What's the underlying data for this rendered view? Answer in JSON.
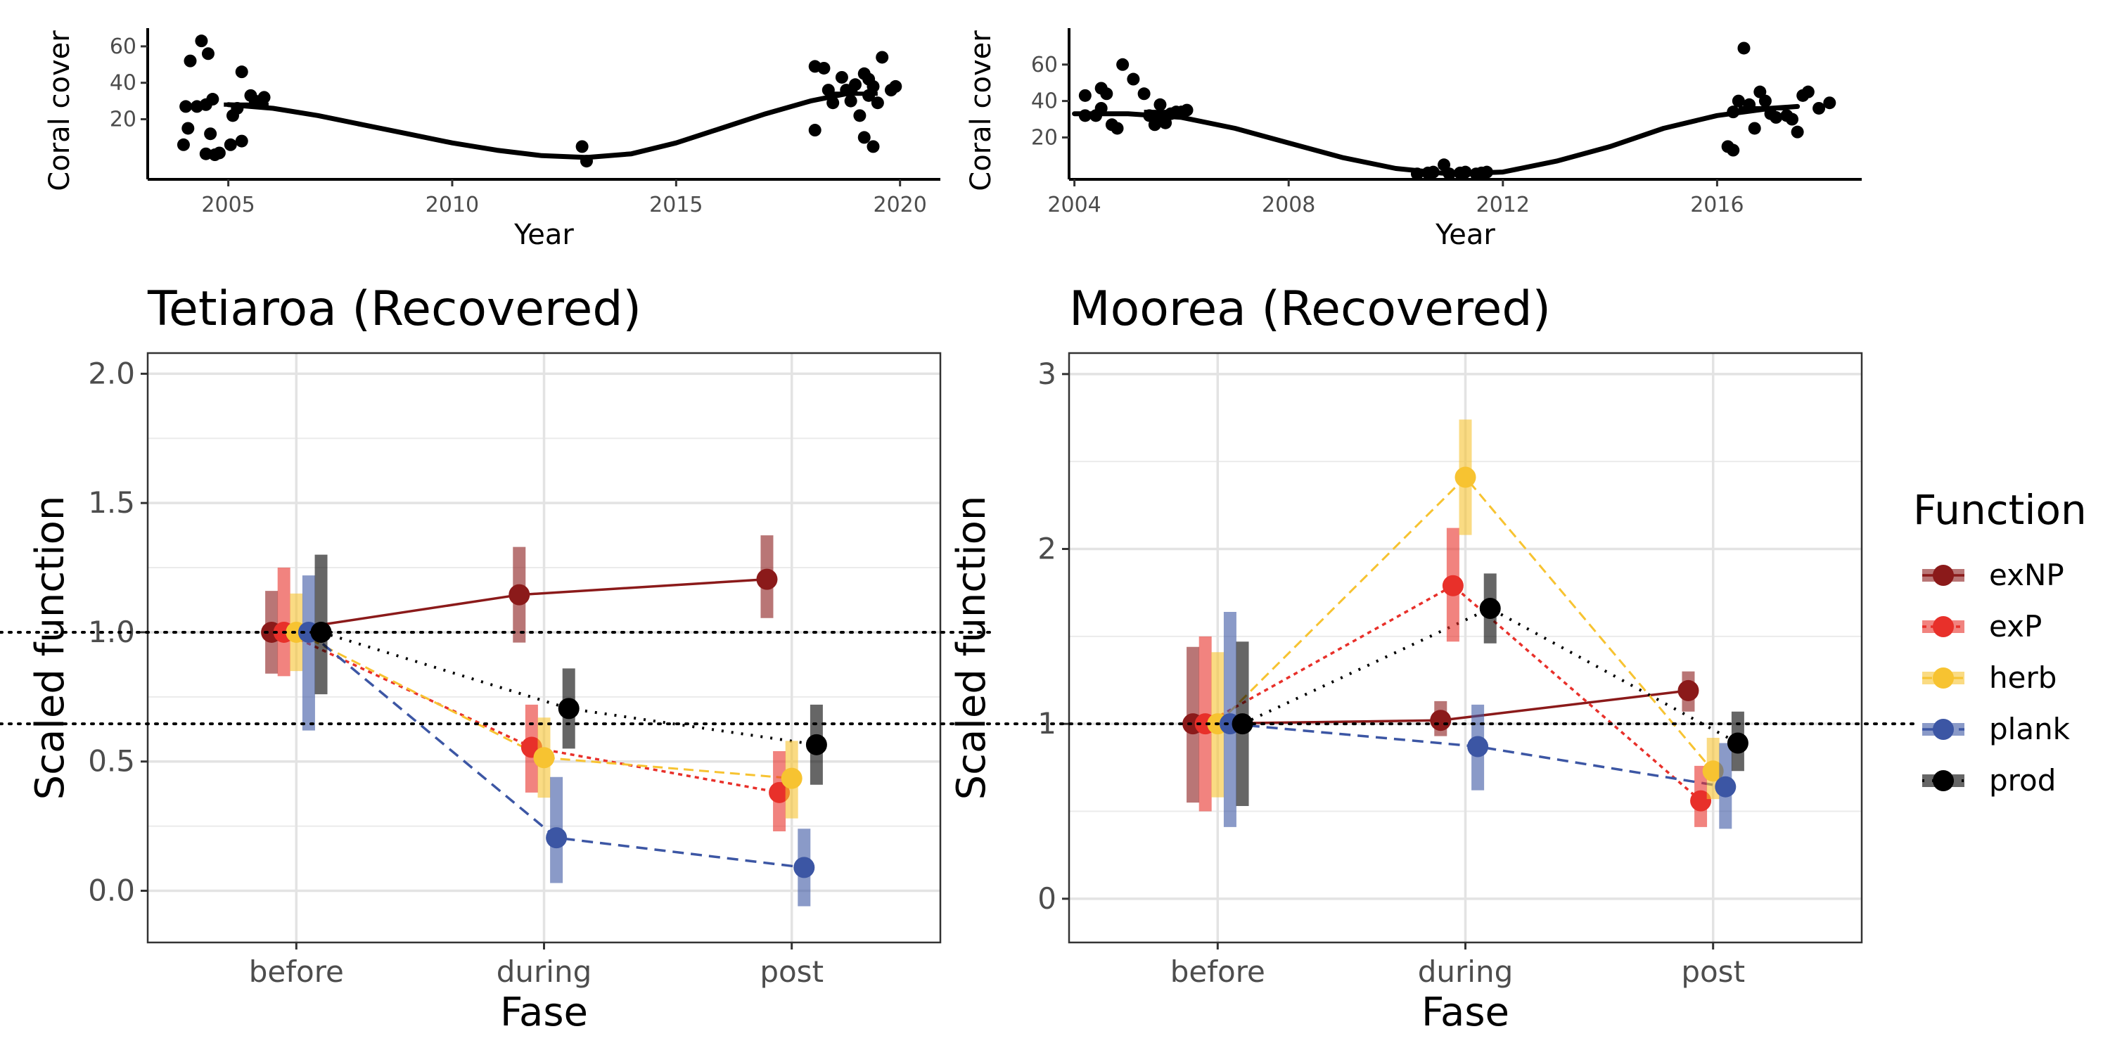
{
  "colors": {
    "exNP": "#8B1A1A",
    "exP": "#E8302A",
    "herb": "#F7C331",
    "plank": "#3C56A4",
    "prod": "#000000"
  },
  "legend": {
    "title": "Function",
    "position": "right",
    "items": [
      {
        "key": "exNP",
        "label": "exNP"
      },
      {
        "key": "exP",
        "label": "exP"
      },
      {
        "key": "herb",
        "label": "herb"
      },
      {
        "key": "plank",
        "label": "plank"
      },
      {
        "key": "prod",
        "label": "prod"
      }
    ]
  },
  "chart_data": [
    {
      "id": "tetiaroa-cover",
      "type": "scatter",
      "title": "",
      "xlabel": "Year",
      "ylabel": "Coral cover",
      "xlim": [
        2003.2,
        2020.9
      ],
      "ylim": [
        -13,
        70
      ],
      "xticks": [
        2005,
        2010,
        2015,
        2020
      ],
      "yticks": [
        20,
        40,
        60
      ],
      "grid": false,
      "points": [
        [
          2004.0,
          6
        ],
        [
          2004.05,
          27
        ],
        [
          2004.1,
          15
        ],
        [
          2004.15,
          52
        ],
        [
          2004.3,
          27
        ],
        [
          2004.4,
          63
        ],
        [
          2004.5,
          28
        ],
        [
          2004.5,
          1
        ],
        [
          2004.55,
          56
        ],
        [
          2004.6,
          12
        ],
        [
          2004.65,
          31
        ],
        [
          2004.7,
          0.5
        ],
        [
          2004.8,
          1.5
        ],
        [
          2005.05,
          6
        ],
        [
          2005.1,
          22
        ],
        [
          2005.2,
          26
        ],
        [
          2005.3,
          8
        ],
        [
          2005.3,
          46
        ],
        [
          2005.5,
          33
        ],
        [
          2005.6,
          30
        ],
        [
          2005.8,
          32
        ],
        [
          2012.9,
          5
        ],
        [
          2013.0,
          -3
        ],
        [
          2018.1,
          14
        ],
        [
          2018.1,
          49
        ],
        [
          2018.3,
          48
        ],
        [
          2018.4,
          36
        ],
        [
          2018.5,
          29
        ],
        [
          2018.7,
          43
        ],
        [
          2018.8,
          36
        ],
        [
          2018.9,
          30
        ],
        [
          2019.0,
          39
        ],
        [
          2019.1,
          22
        ],
        [
          2019.2,
          45
        ],
        [
          2019.2,
          10
        ],
        [
          2019.3,
          33
        ],
        [
          2019.3,
          42
        ],
        [
          2019.4,
          38
        ],
        [
          2019.4,
          5
        ],
        [
          2019.5,
          29
        ],
        [
          2019.6,
          54
        ],
        [
          2019.8,
          36
        ],
        [
          2019.9,
          38
        ]
      ],
      "curve": [
        [
          2005.0,
          28
        ],
        [
          2006.0,
          26
        ],
        [
          2007.0,
          22
        ],
        [
          2008.0,
          17
        ],
        [
          2009.0,
          12
        ],
        [
          2010.0,
          7
        ],
        [
          2011.0,
          3
        ],
        [
          2012.0,
          0
        ],
        [
          2013.0,
          -1
        ],
        [
          2014.0,
          1
        ],
        [
          2015.0,
          7
        ],
        [
          2016.0,
          15
        ],
        [
          2017.0,
          23
        ],
        [
          2018.0,
          30
        ],
        [
          2019.0,
          35
        ]
      ],
      "segments": [
        {
          "x": [
            2004.9,
            2005.9
          ],
          "y": 28
        },
        {
          "x": [
            2018.5,
            2019.5
          ],
          "y": 34
        }
      ]
    },
    {
      "id": "moorea-cover",
      "type": "scatter",
      "title": "",
      "xlabel": "Year",
      "ylabel": "Coral cover",
      "xlim": [
        2003.9,
        2018.7
      ],
      "ylim": [
        -3,
        80
      ],
      "xticks": [
        2004,
        2008,
        2012,
        2016
      ],
      "xtick_labels": [
        "2004",
        "2008",
        "2012",
        "2016"
      ],
      "yticks": [
        20,
        40,
        60
      ],
      "grid": false,
      "points": [
        [
          2004.2,
          43
        ],
        [
          2004.2,
          32
        ],
        [
          2004.4,
          32
        ],
        [
          2004.5,
          36
        ],
        [
          2004.5,
          47
        ],
        [
          2004.6,
          44
        ],
        [
          2004.7,
          27
        ],
        [
          2004.8,
          25
        ],
        [
          2004.9,
          60
        ],
        [
          2005.1,
          52
        ],
        [
          2005.3,
          44
        ],
        [
          2005.4,
          32
        ],
        [
          2005.5,
          27
        ],
        [
          2005.6,
          30
        ],
        [
          2005.6,
          38
        ],
        [
          2005.7,
          28
        ],
        [
          2005.8,
          33
        ],
        [
          2005.9,
          34
        ],
        [
          2006.0,
          34
        ],
        [
          2006.1,
          35
        ],
        [
          2010.4,
          0
        ],
        [
          2010.6,
          0.5
        ],
        [
          2010.7,
          1
        ],
        [
          2010.9,
          5
        ],
        [
          2011.0,
          0
        ],
        [
          2011.2,
          0.5
        ],
        [
          2011.3,
          1
        ],
        [
          2011.5,
          0
        ],
        [
          2011.6,
          0.5
        ],
        [
          2011.7,
          1
        ],
        [
          2016.2,
          15
        ],
        [
          2016.3,
          13
        ],
        [
          2016.3,
          34
        ],
        [
          2016.4,
          40
        ],
        [
          2016.5,
          69
        ],
        [
          2016.6,
          38
        ],
        [
          2016.7,
          25
        ],
        [
          2016.8,
          45
        ],
        [
          2016.9,
          40
        ],
        [
          2017.0,
          33
        ],
        [
          2017.1,
          31
        ],
        [
          2017.3,
          32
        ],
        [
          2017.4,
          30
        ],
        [
          2017.5,
          23
        ],
        [
          2017.6,
          43
        ],
        [
          2017.7,
          45
        ],
        [
          2017.9,
          36
        ],
        [
          2018.1,
          39
        ]
      ],
      "curve": [
        [
          2004.0,
          33
        ],
        [
          2005.0,
          33
        ],
        [
          2006.0,
          31
        ],
        [
          2007.0,
          25
        ],
        [
          2008.0,
          17
        ],
        [
          2009.0,
          9
        ],
        [
          2010.0,
          3
        ],
        [
          2011.0,
          0
        ],
        [
          2012.0,
          1
        ],
        [
          2013.0,
          7
        ],
        [
          2014.0,
          15
        ],
        [
          2015.0,
          25
        ],
        [
          2016.0,
          32
        ],
        [
          2017.0,
          36
        ],
        [
          2017.5,
          37
        ]
      ],
      "segments": [
        {
          "x": [
            2005.3,
            2006.0
          ],
          "y": 34
        },
        {
          "x": [
            2016.4,
            2017.3
          ],
          "y": 36
        }
      ]
    },
    {
      "id": "tetiaroa-function",
      "type": "line",
      "title": "Tetiaroa (Recovered)",
      "xlabel": "Fase",
      "ylabel": "Scaled function",
      "categories": [
        "before",
        "during",
        "post"
      ],
      "ylim": [
        -0.2,
        2.08
      ],
      "yticks": [
        0.0,
        0.5,
        1.0,
        1.5,
        2.0
      ],
      "ytick_labels": [
        "0.0",
        "0.5",
        "1.0",
        "1.5",
        "2.0"
      ],
      "grid": true,
      "reference_line": 1.0,
      "series": [
        {
          "name": "exNP",
          "values": [
            1.0,
            1.145,
            1.205
          ],
          "lower": [
            0.84,
            0.96,
            1.055
          ],
          "upper": [
            1.16,
            1.33,
            1.375
          ]
        },
        {
          "name": "exP",
          "values": [
            1.0,
            0.555,
            0.38
          ],
          "lower": [
            0.83,
            0.38,
            0.23
          ],
          "upper": [
            1.25,
            0.72,
            0.54
          ]
        },
        {
          "name": "herb",
          "values": [
            1.0,
            0.515,
            0.435
          ],
          "lower": [
            0.85,
            0.36,
            0.28
          ],
          "upper": [
            1.15,
            0.67,
            0.58
          ]
        },
        {
          "name": "plank",
          "values": [
            1.0,
            0.205,
            0.09
          ],
          "lower": [
            0.62,
            0.03,
            -0.06
          ],
          "upper": [
            1.22,
            0.44,
            0.24
          ]
        },
        {
          "name": "prod",
          "values": [
            1.0,
            0.705,
            0.565
          ],
          "lower": [
            0.76,
            0.55,
            0.41
          ],
          "upper": [
            1.3,
            0.86,
            0.72
          ]
        }
      ]
    },
    {
      "id": "moorea-function",
      "type": "line",
      "title": "Moorea (Recovered)",
      "xlabel": "Fase",
      "ylabel": "Scaled function",
      "categories": [
        "before",
        "during",
        "post"
      ],
      "ylim": [
        -0.25,
        3.12
      ],
      "yticks": [
        0,
        1,
        2,
        3
      ],
      "ytick_labels": [
        "0",
        "1",
        "2",
        "3"
      ],
      "grid": true,
      "reference_line": 1.0,
      "series": [
        {
          "name": "exNP",
          "values": [
            1.0,
            1.02,
            1.19
          ],
          "lower": [
            0.55,
            0.93,
            1.07
          ],
          "upper": [
            1.44,
            1.13,
            1.3
          ]
        },
        {
          "name": "exP",
          "values": [
            1.0,
            1.79,
            0.56
          ],
          "lower": [
            0.5,
            1.47,
            0.41
          ],
          "upper": [
            1.5,
            2.12,
            0.76
          ]
        },
        {
          "name": "herb",
          "values": [
            1.0,
            2.41,
            0.73
          ],
          "lower": [
            0.58,
            2.08,
            0.57
          ],
          "upper": [
            1.41,
            2.74,
            0.92
          ]
        },
        {
          "name": "plank",
          "values": [
            1.0,
            0.87,
            0.64
          ],
          "lower": [
            0.41,
            0.62,
            0.4
          ],
          "upper": [
            1.64,
            1.11,
            0.89
          ]
        },
        {
          "name": "prod",
          "values": [
            1.0,
            1.66,
            0.89
          ],
          "lower": [
            0.53,
            1.46,
            0.73
          ],
          "upper": [
            1.47,
            1.86,
            1.07
          ]
        }
      ]
    }
  ]
}
